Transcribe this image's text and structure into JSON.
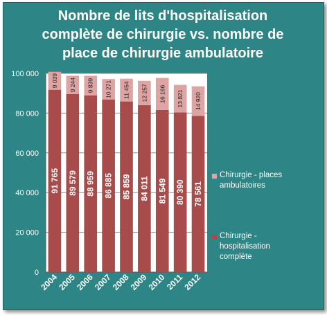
{
  "chart_data": {
    "type": "bar",
    "stacked": true,
    "title": "Nombre de lits d'hospitalisation\ncomplète de chirurgie vs. nombre de\nplace de chirurgie ambulatoire",
    "categories": [
      "2004",
      "2005",
      "2006",
      "2007",
      "2008",
      "2009",
      "2010",
      "2011",
      "2012"
    ],
    "series": [
      {
        "name": "Chirurgie - hospitalisation complète",
        "values": [
          91765,
          89579,
          88959,
          86885,
          85859,
          84011,
          81549,
          80390,
          78561
        ],
        "labels": [
          "91 765",
          "89 579",
          "88 959",
          "86 885",
          "85 859",
          "84 011",
          "81 549",
          "80 390",
          "78 561"
        ],
        "color": "#a84b4b"
      },
      {
        "name": "Chirurgie - places ambulatoires",
        "values": [
          9039,
          9244,
          9839,
          10271,
          11454,
          12257,
          16166,
          13821,
          14920
        ],
        "labels": [
          "9 039",
          "9 244",
          "9 839",
          "10 271",
          "11 454",
          "12 257",
          "16 166",
          "13 821",
          "14 920"
        ],
        "color": "#dea3a3"
      }
    ],
    "ylim": [
      0,
      100000
    ],
    "yticks": [
      0,
      20000,
      40000,
      60000,
      80000,
      100000
    ],
    "ytick_labels": [
      "0",
      "20 000",
      "40 000",
      "60 000",
      "80 000",
      "100 000"
    ],
    "grid": true,
    "legend": "right"
  },
  "colors": {
    "background": "#2e8585",
    "plot_area": "#ffffff",
    "gridline": "#8c8c8c"
  }
}
